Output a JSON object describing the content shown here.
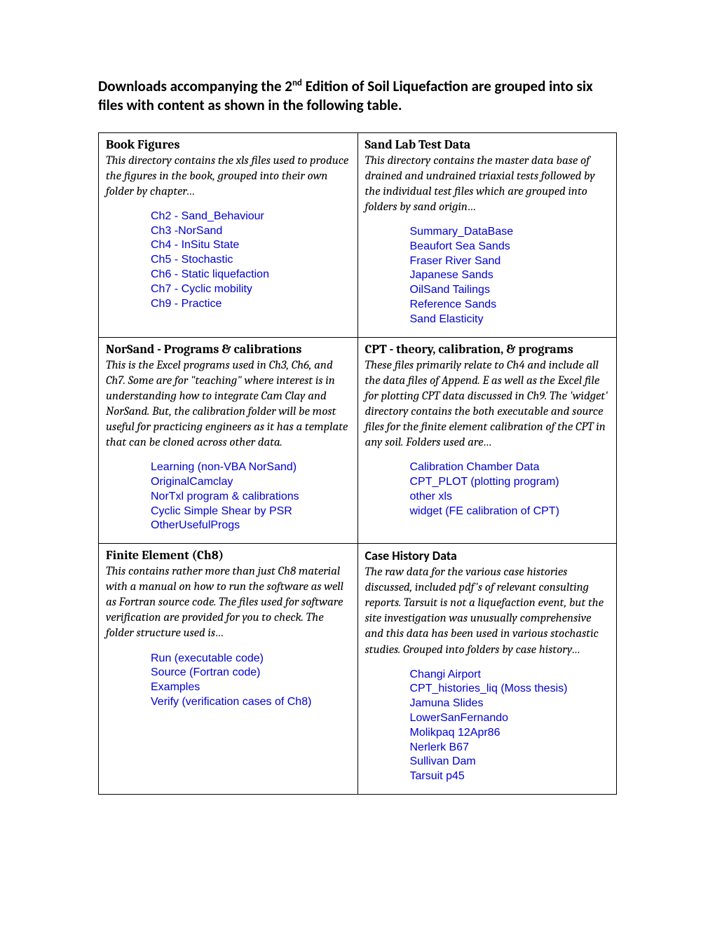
{
  "intro_html": "Downloads accompanying the 2<span class=\"sup\">nd</span> Edition of Soil Liquefaction are grouped into six files with content as shown in the following table.",
  "cells": {
    "r1c1": {
      "title": "Book Figures",
      "title_class": "cell-title",
      "desc": "This directory contains the xls files used to produce the figures in the book, grouped into their own folder by chapter…",
      "links": [
        "Ch2 - Sand_Behaviour",
        "Ch3 -NorSand",
        "Ch4 - InSitu State",
        "Ch5 - Stochastic",
        "Ch6 - Static liquefaction",
        "Ch7 - Cyclic mobility",
        "Ch9 - Practice"
      ]
    },
    "r1c2": {
      "title": "Sand Lab Test Data",
      "title_class": "cell-title",
      "desc": "This directory contains the master data base of drained and undrained triaxial tests followed by the individual test files which are grouped into folders by sand origin…",
      "links": [
        "Summary_DataBase",
        "Beaufort Sea Sands",
        "Fraser River Sand",
        "Japanese Sands",
        "OilSand Tailings",
        "Reference Sands",
        "Sand Elasticity"
      ]
    },
    "r2c1": {
      "title": "NorSand - Programs & calibrations",
      "title_class": "cell-title",
      "desc": "This is the Excel programs used in Ch3, Ch6, and Ch7.  Some are for \"teaching\" where interest is in understanding how to integrate Cam Clay and NorSand.  But, the calibration folder will be most useful for practicing engineers as it has a template that can be cloned across other data.",
      "links": [
        "Learning (non-VBA NorSand)",
        "OriginalCamclay",
        "NorTxl program & calibrations",
        "Cyclic Simple Shear by PSR",
        "OtherUsefulProgs"
      ]
    },
    "r2c2": {
      "title": "CPT - theory, calibration, & programs",
      "title_class": "cell-title",
      "desc": "These files primarily relate to Ch4 and include all the data files of Append. E as well as the Excel file for plotting CPT data discussed in Ch9.  The 'widget' directory contains the both executable and source files for the finite element calibration of the CPT in any soil.  Folders used are…",
      "links": [
        "Calibration Chamber Data",
        "CPT_PLOT (plotting program)",
        "other xls",
        "widget (FE calibration of CPT)"
      ]
    },
    "r3c1": {
      "title": "Finite Element (Ch8)",
      "title_class": "cell-title",
      "desc": "This contains rather more than just Ch8 material with a manual on how to run the software as well as Fortran source code.  The files used for software verification are provided for you to check.  The folder structure used is…",
      "links": [
        "Run (executable code)",
        "Source (Fortran code)",
        "Examples",
        "Verify (verification cases of Ch8)"
      ]
    },
    "r3c2": {
      "title": "Case History Data",
      "title_class": "cell-title-sans",
      "desc": "The raw data for the various case histories discussed, included pdf's of relevant consulting reports.  Tarsuit is not a liquefaction event, but the site investigation was unusually comprehensive and this data has been used in various stochastic studies.  Grouped into folders by case history…",
      "links": [
        "Changi Airport",
        "CPT_histories_liq (Moss thesis)",
        "Jamuna Slides",
        "LowerSanFernando",
        "Molikpaq 12Apr86",
        "Nerlerk B67",
        "Sullivan Dam",
        "Tarsuit p45"
      ]
    }
  }
}
